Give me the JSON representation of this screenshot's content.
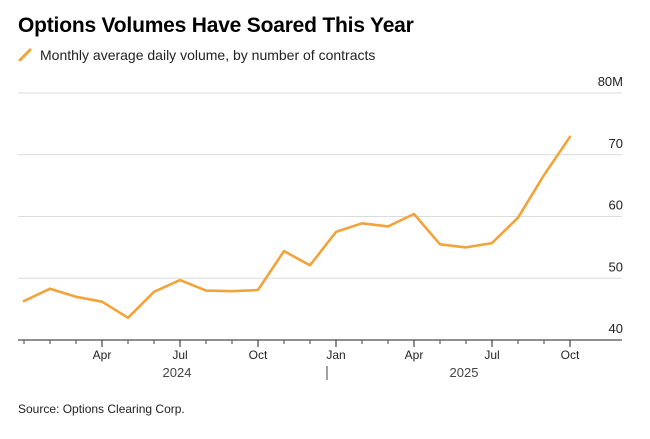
{
  "title": "Options Volumes Have Soared This Year",
  "source": "Source: Options Clearing Corp.",
  "line_color": "#f2a33a",
  "chart_data": {
    "type": "line",
    "subtitle": "",
    "xlabel": "",
    "ylabel": "",
    "ylim": [
      40,
      80
    ],
    "y_ticks": [
      {
        "value": 80,
        "label": "80M"
      },
      {
        "value": 70,
        "label": "70"
      },
      {
        "value": 60,
        "label": "60"
      },
      {
        "value": 50,
        "label": "50"
      },
      {
        "value": 40,
        "label": "40"
      }
    ],
    "x_ticks": [
      {
        "month": "2024-04",
        "label": "Apr"
      },
      {
        "month": "2024-07",
        "label": "Jul"
      },
      {
        "month": "2024-10",
        "label": "Oct"
      },
      {
        "month": "2025-01",
        "label": "Jan"
      },
      {
        "month": "2025-04",
        "label": "Apr"
      },
      {
        "month": "2025-07",
        "label": "Jul"
      },
      {
        "month": "2025-10",
        "label": "Oct"
      }
    ],
    "year_labels": [
      {
        "label": "2024",
        "center_month": "2024-06.5"
      },
      {
        "label": "2025",
        "center_month": "2025-06.5"
      }
    ],
    "grid": true,
    "legend": "top-left",
    "series": [
      {
        "name": "Monthly average daily volume, by number of contracts",
        "points": [
          {
            "x": "2024-01",
            "y": 46.3
          },
          {
            "x": "2024-02",
            "y": 48.3
          },
          {
            "x": "2024-03",
            "y": 47.0
          },
          {
            "x": "2024-04",
            "y": 46.2
          },
          {
            "x": "2024-05",
            "y": 43.6
          },
          {
            "x": "2024-06",
            "y": 47.8
          },
          {
            "x": "2024-07",
            "y": 49.7
          },
          {
            "x": "2024-08",
            "y": 48.0
          },
          {
            "x": "2024-09",
            "y": 47.9
          },
          {
            "x": "2024-10",
            "y": 48.1
          },
          {
            "x": "2024-11",
            "y": 54.4
          },
          {
            "x": "2024-12",
            "y": 52.1
          },
          {
            "x": "2025-01",
            "y": 57.5
          },
          {
            "x": "2025-02",
            "y": 58.9
          },
          {
            "x": "2025-03",
            "y": 58.4
          },
          {
            "x": "2025-04",
            "y": 60.4
          },
          {
            "x": "2025-05",
            "y": 55.5
          },
          {
            "x": "2025-06",
            "y": 55.0
          },
          {
            "x": "2025-07",
            "y": 55.7
          },
          {
            "x": "2025-08",
            "y": 59.8
          },
          {
            "x": "2025-09",
            "y": 66.7
          },
          {
            "x": "2025-10",
            "y": 72.9
          }
        ]
      }
    ]
  }
}
